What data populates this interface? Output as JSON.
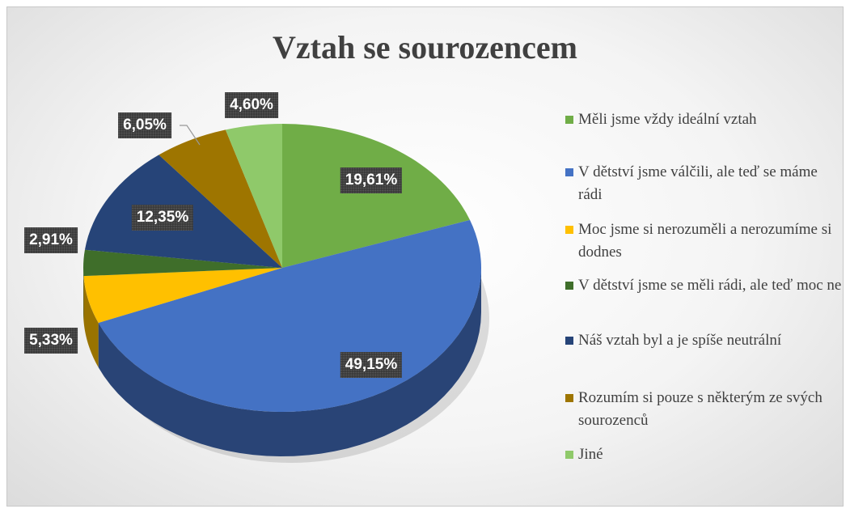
{
  "chart_data": {
    "type": "pie",
    "title": "Vztah se sourozencem",
    "categories": [
      "Měli jsme vždy ideální vztah",
      "V dětství jsme válčili, ale teď se máme rádi",
      "Moc jsme si nerozuměli a nerozumíme si dodnes",
      "V dětství jsme se měli rádi, ale teď moc ne",
      "Náš vztah byl a je spíše neutrální",
      "Rozumím si pouze s některým ze svých sourozenců",
      "Jiné"
    ],
    "values": [
      19.61,
      49.15,
      5.33,
      2.91,
      12.35,
      6.05,
      4.6
    ],
    "value_labels": [
      "19,61%",
      "49,15%",
      "5,33%",
      "2,91%",
      "12,35%",
      "6,05%",
      "4,60%"
    ],
    "colors": [
      "#70ad47",
      "#4472c4",
      "#ffc000",
      "#3f6e2a",
      "#264478",
      "#9e7500",
      "#8fc96a"
    ],
    "legend": "right"
  }
}
